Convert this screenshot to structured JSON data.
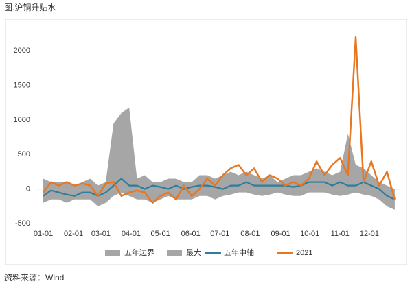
{
  "chart_data": {
    "type": "line",
    "title": "图.沪铜升贴水",
    "source": "资料来源：Wind",
    "x": [
      0,
      8,
      16,
      24,
      32,
      40,
      48,
      56,
      64,
      72,
      80,
      88,
      96,
      104,
      112,
      120,
      128,
      136,
      144,
      152,
      160,
      168,
      176,
      184,
      192,
      200,
      208,
      216,
      224,
      232,
      240,
      248,
      256,
      264,
      272,
      280,
      288,
      296,
      304,
      312,
      320,
      328,
      336,
      344,
      352,
      360
    ],
    "xlim": [
      0,
      365
    ],
    "xticks": [
      {
        "value": 0,
        "label": "01-01"
      },
      {
        "value": 31,
        "label": "02-01"
      },
      {
        "value": 59,
        "label": "03-01"
      },
      {
        "value": 90,
        "label": "04-01"
      },
      {
        "value": 120,
        "label": "05-01"
      },
      {
        "value": 151,
        "label": "06-01"
      },
      {
        "value": 181,
        "label": "07-01"
      },
      {
        "value": 212,
        "label": "08-01"
      },
      {
        "value": 243,
        "label": "09-01"
      },
      {
        "value": 273,
        "label": "10-01"
      },
      {
        "value": 304,
        "label": "11-01"
      },
      {
        "value": 334,
        "label": "12-01"
      }
    ],
    "ylim": [
      -500,
      2300
    ],
    "yticks": [
      -500,
      0,
      500,
      1000,
      1500,
      2000
    ],
    "series": [
      {
        "name": "五年边界",
        "color": "#a6a6a6",
        "style": "area",
        "values": [
          -200,
          -150,
          -150,
          -200,
          -150,
          -150,
          -150,
          -250,
          -200,
          -100,
          -50,
          -100,
          -150,
          -150,
          -200,
          -150,
          -100,
          -150,
          -150,
          -150,
          -100,
          -100,
          -150,
          -100,
          -80,
          -50,
          -50,
          -80,
          -100,
          -80,
          -50,
          -80,
          -100,
          -100,
          -50,
          -50,
          -50,
          -80,
          -100,
          -80,
          -50,
          -80,
          -100,
          -150,
          -250,
          -300
        ]
      },
      {
        "name": "最大",
        "color": "#a6a6a6",
        "style": "area",
        "values": [
          150,
          100,
          100,
          100,
          50,
          100,
          150,
          50,
          100,
          950,
          1100,
          1180,
          150,
          200,
          100,
          100,
          150,
          150,
          100,
          100,
          200,
          200,
          150,
          200,
          250,
          200,
          250,
          200,
          150,
          200,
          100,
          150,
          200,
          200,
          250,
          300,
          250,
          200,
          250,
          800,
          350,
          300,
          200,
          100,
          50,
          0
        ]
      },
      {
        "name": "五年中轴",
        "color": "#2e7d9a",
        "style": "line",
        "values": [
          -100,
          -20,
          -50,
          -80,
          -100,
          -50,
          -50,
          -100,
          -50,
          50,
          150,
          50,
          50,
          0,
          50,
          30,
          0,
          50,
          0,
          30,
          50,
          50,
          30,
          0,
          50,
          50,
          100,
          50,
          50,
          50,
          50,
          50,
          30,
          50,
          100,
          100,
          100,
          50,
          100,
          50,
          50,
          100,
          50,
          0,
          -100,
          -150
        ]
      },
      {
        "name": "2021",
        "color": "#e87722",
        "style": "line",
        "values": [
          -50,
          100,
          50,
          100,
          50,
          80,
          50,
          -100,
          80,
          100,
          -100,
          -50,
          -20,
          -50,
          -200,
          -100,
          -50,
          -150,
          50,
          -100,
          0,
          150,
          50,
          200,
          300,
          350,
          200,
          300,
          100,
          200,
          150,
          50,
          100,
          50,
          150,
          400,
          200,
          350,
          450,
          200,
          2200,
          100,
          400,
          50,
          250,
          -150
        ]
      }
    ]
  }
}
